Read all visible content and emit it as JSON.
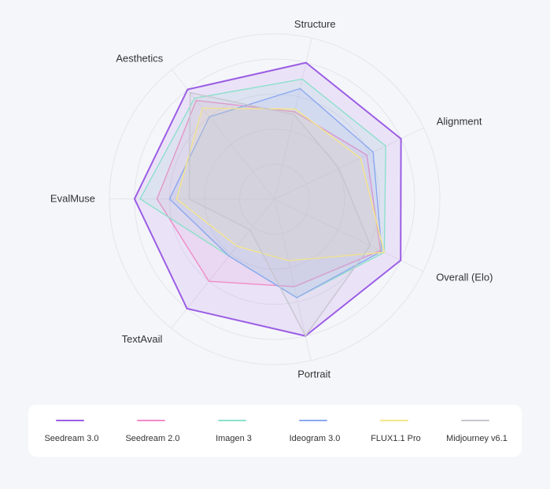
{
  "chart_data": {
    "type": "radar",
    "axes": [
      "Structure",
      "Alignment",
      "Overall (Elo)",
      "Portrait",
      "TextAvail",
      "EvalMuse",
      "Aesthetics"
    ],
    "range": [
      0,
      100
    ],
    "grid": true,
    "legend_position": "bottom",
    "series": [
      {
        "name": "Seedream 3.0",
        "color": "#9b5de5",
        "values": [
          100,
          100,
          100,
          100,
          100,
          100,
          100
        ]
      },
      {
        "name": "Seedream 2.0",
        "color": "#f08bc8",
        "values": [
          64,
          73,
          84,
          64,
          75,
          84,
          90
        ]
      },
      {
        "name": "Imagen 3",
        "color": "#8de0cc",
        "values": [
          88,
          88,
          87,
          72,
          52,
          96,
          92
        ]
      },
      {
        "name": "Ideogram 3.0",
        "color": "#8ca8f0",
        "values": [
          81,
          78,
          85,
          72,
          52,
          75,
          75
        ]
      },
      {
        "name": "FLUX1.1 Pro",
        "color": "#f5e58a",
        "values": [
          66,
          68,
          87,
          45,
          43,
          70,
          83
        ]
      },
      {
        "name": "Midjourney v6.1",
        "color": "#c6c6ce",
        "values": [
          62,
          51,
          76,
          100,
          28,
          61,
          97
        ]
      }
    ]
  }
}
